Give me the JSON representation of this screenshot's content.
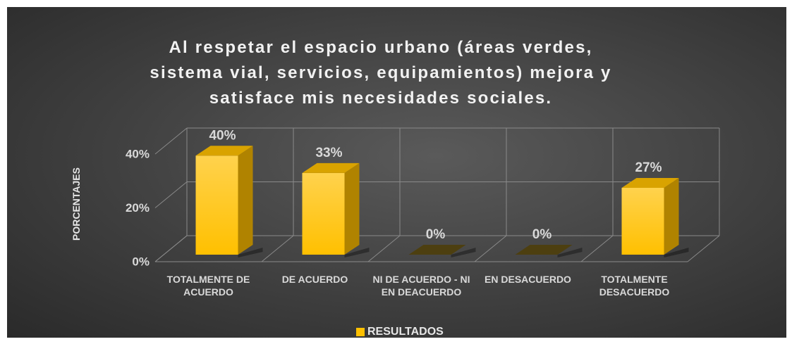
{
  "chart_data": {
    "type": "bar3d",
    "title": "Al respetar el espacio urbano (áreas verdes, sistema vial, servicios, equipamientos) mejora y satisface mis necesidades sociales.",
    "y_label": "PORCENTAJES",
    "categories": [
      "TOTALMENTE DE ACUERDO",
      "DE ACUERDO",
      "NI DE ACUERDO - NI EN DEACUERDO",
      "EN DESACUERDO",
      "TOTALMENTE DESACUERDO"
    ],
    "series": [
      {
        "name": "RESULTADOS",
        "color": "#ffc000",
        "values": [
          40,
          33,
          0,
          0,
          27
        ],
        "value_labels": [
          "40%",
          "33%",
          "0%",
          "0%",
          "27%"
        ]
      }
    ],
    "ylim": [
      0,
      40
    ],
    "yticks": [
      {
        "value": 0,
        "label": "0%"
      },
      {
        "value": 20,
        "label": "20%"
      },
      {
        "value": 40,
        "label": "40%"
      }
    ],
    "grid": true,
    "legend": "bottom"
  }
}
